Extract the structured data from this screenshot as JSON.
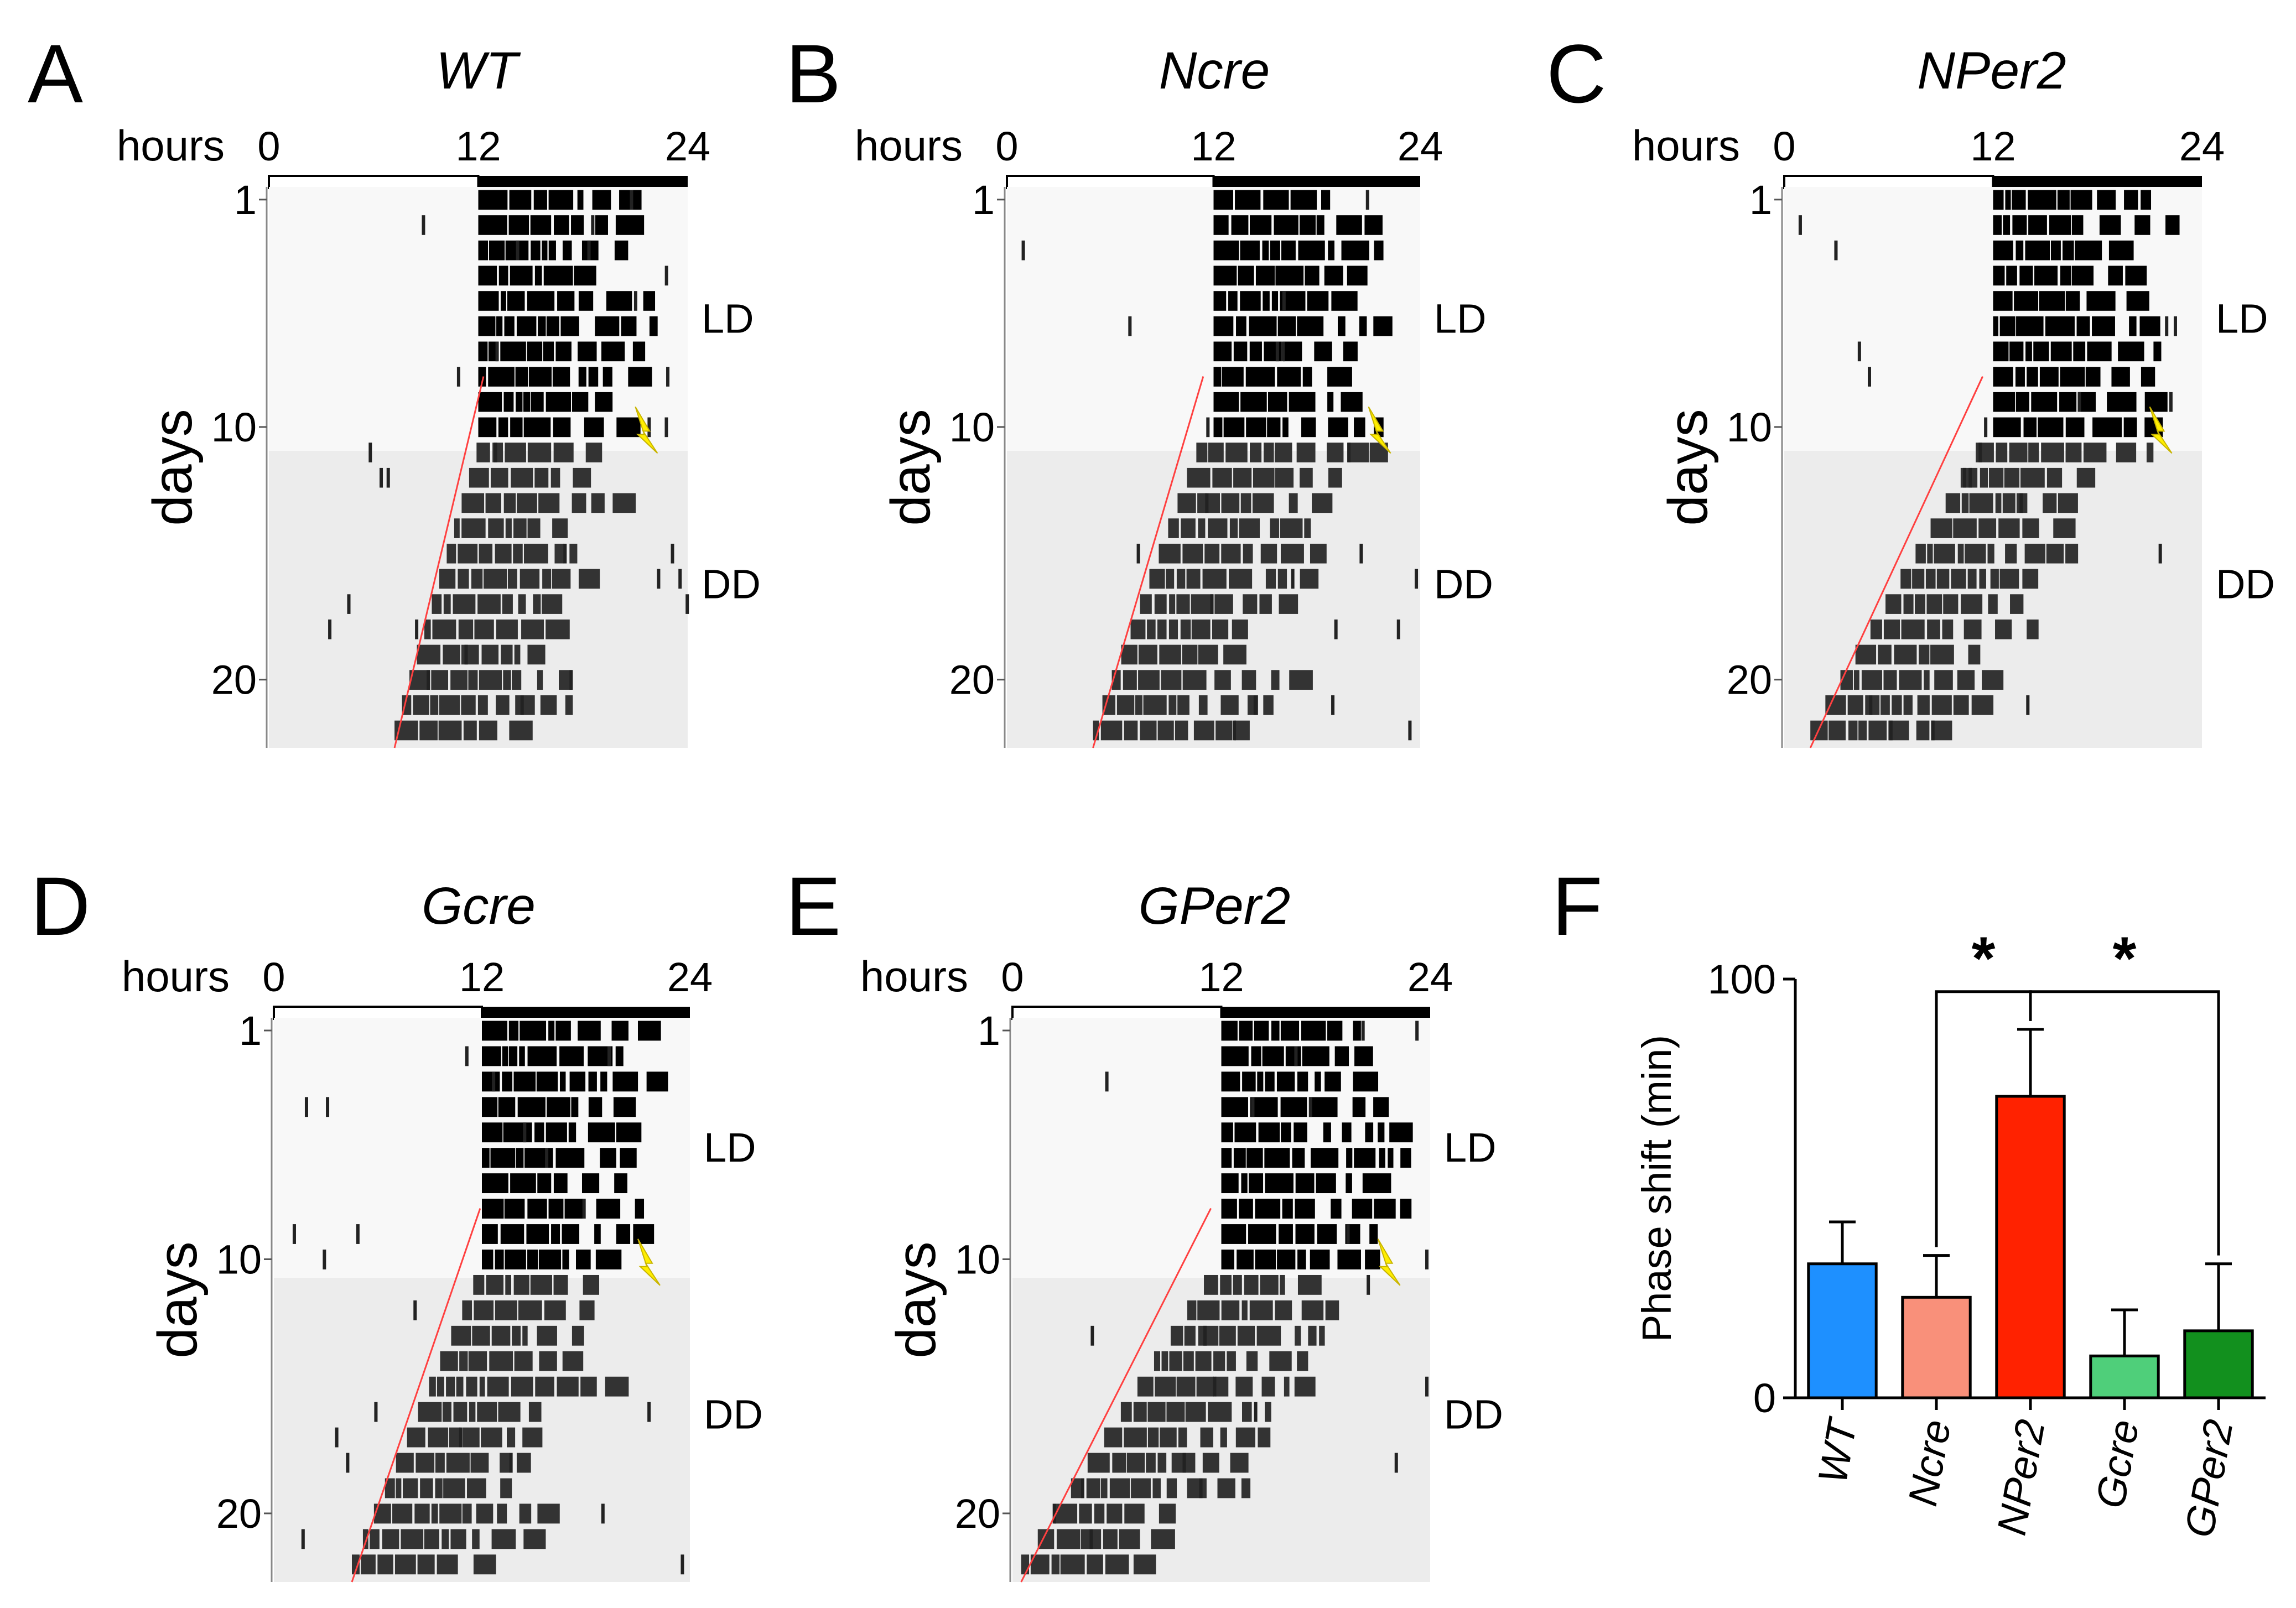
{
  "actograms": [
    {
      "panel": "A",
      "title": "WT",
      "hours_label": "hours",
      "hour_ticks": [
        "0",
        "12",
        "24"
      ],
      "day_ticks": [
        "1",
        "10",
        "20"
      ],
      "days_label": "days",
      "ld_label": "LD",
      "dd_label": "DD",
      "ld_days": 10,
      "total_days": 22,
      "dd_onset_start_h": 11.9,
      "dd_onset_end_h": 7.2,
      "light_pulse_day": 10
    },
    {
      "panel": "B",
      "title": "Ncre",
      "hours_label": "hours",
      "hour_ticks": [
        "0",
        "12",
        "24"
      ],
      "day_ticks": [
        "1",
        "10",
        "20"
      ],
      "days_label": "days",
      "ld_label": "LD",
      "dd_label": "DD",
      "ld_days": 10,
      "total_days": 22,
      "dd_onset_start_h": 11.0,
      "dd_onset_end_h": 5.0,
      "light_pulse_day": 10
    },
    {
      "panel": "C",
      "title": "NPer2",
      "hours_label": "hours",
      "hour_ticks": [
        "0",
        "12",
        "24"
      ],
      "day_ticks": [
        "1",
        "10",
        "20"
      ],
      "days_label": "days",
      "ld_label": "LD",
      "dd_label": "DD",
      "ld_days": 10,
      "total_days": 22,
      "dd_onset_start_h": 11.0,
      "dd_onset_end_h": 1.5,
      "light_pulse_day": 10
    },
    {
      "panel": "D",
      "title": "Gcre",
      "hours_label": "hours",
      "hour_ticks": [
        "0",
        "12",
        "24"
      ],
      "day_ticks": [
        "1",
        "10",
        "20"
      ],
      "days_label": "days",
      "ld_label": "LD",
      "dd_label": "DD",
      "ld_days": 10,
      "total_days": 22,
      "dd_onset_start_h": 11.5,
      "dd_onset_end_h": 4.5,
      "light_pulse_day": 10
    },
    {
      "panel": "E",
      "title": "GPer2",
      "hours_label": "hours",
      "hour_ticks": [
        "0",
        "12",
        "24"
      ],
      "day_ticks": [
        "1",
        "10",
        "20"
      ],
      "days_label": "days",
      "ld_label": "LD",
      "dd_label": "DD",
      "ld_days": 10,
      "total_days": 22,
      "dd_onset_start_h": 11.0,
      "dd_onset_end_h": 0.5,
      "light_pulse_day": 10
    }
  ],
  "chart_data": {
    "panel": "F",
    "type": "bar",
    "categories": [
      "WT",
      "Ncre",
      "NPer2",
      "Gcre",
      "GPer2"
    ],
    "values": [
      32,
      24,
      72,
      10,
      16
    ],
    "errors": [
      10,
      10,
      16,
      11,
      16
    ],
    "colors": [
      "#1e90ff",
      "#f9907a",
      "#ff2200",
      "#4fcf7a",
      "#12901e"
    ],
    "ylabel": "Phase shift (min)",
    "ylim": [
      0,
      100
    ],
    "yticks": [
      "0",
      "100"
    ],
    "significance": [
      {
        "from": "Ncre",
        "to": "NPer2",
        "label": "*"
      },
      {
        "from": "NPer2",
        "to": "GPer2",
        "label": "*"
      }
    ]
  }
}
